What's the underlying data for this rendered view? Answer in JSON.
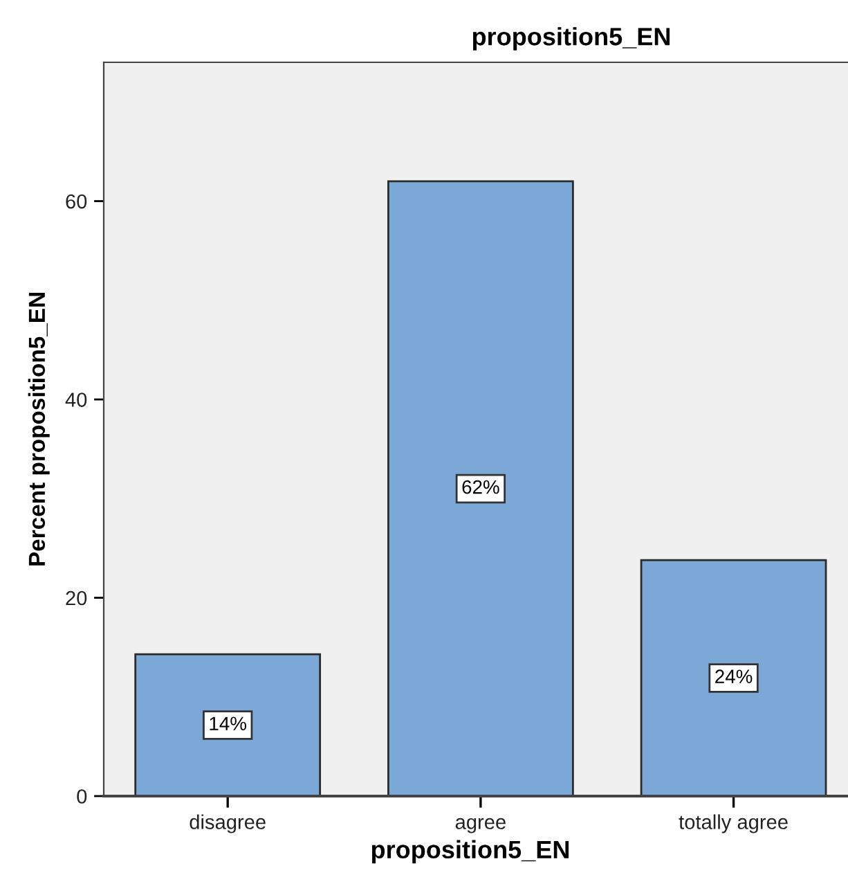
{
  "chart_data": {
    "type": "bar",
    "title": "proposition5_EN",
    "xlabel": "proposition5_EN",
    "ylabel": "Percent proposition5_EN",
    "categories": [
      "disagree",
      "agree",
      "totally agree"
    ],
    "values": [
      14.3,
      62.0,
      23.8
    ],
    "value_labels": [
      "14%",
      "62%",
      "24%"
    ],
    "color": "#7ba8d6",
    "ylim": [
      0,
      74
    ],
    "yticks": [
      0,
      20,
      40,
      60
    ],
    "grid": false
  }
}
